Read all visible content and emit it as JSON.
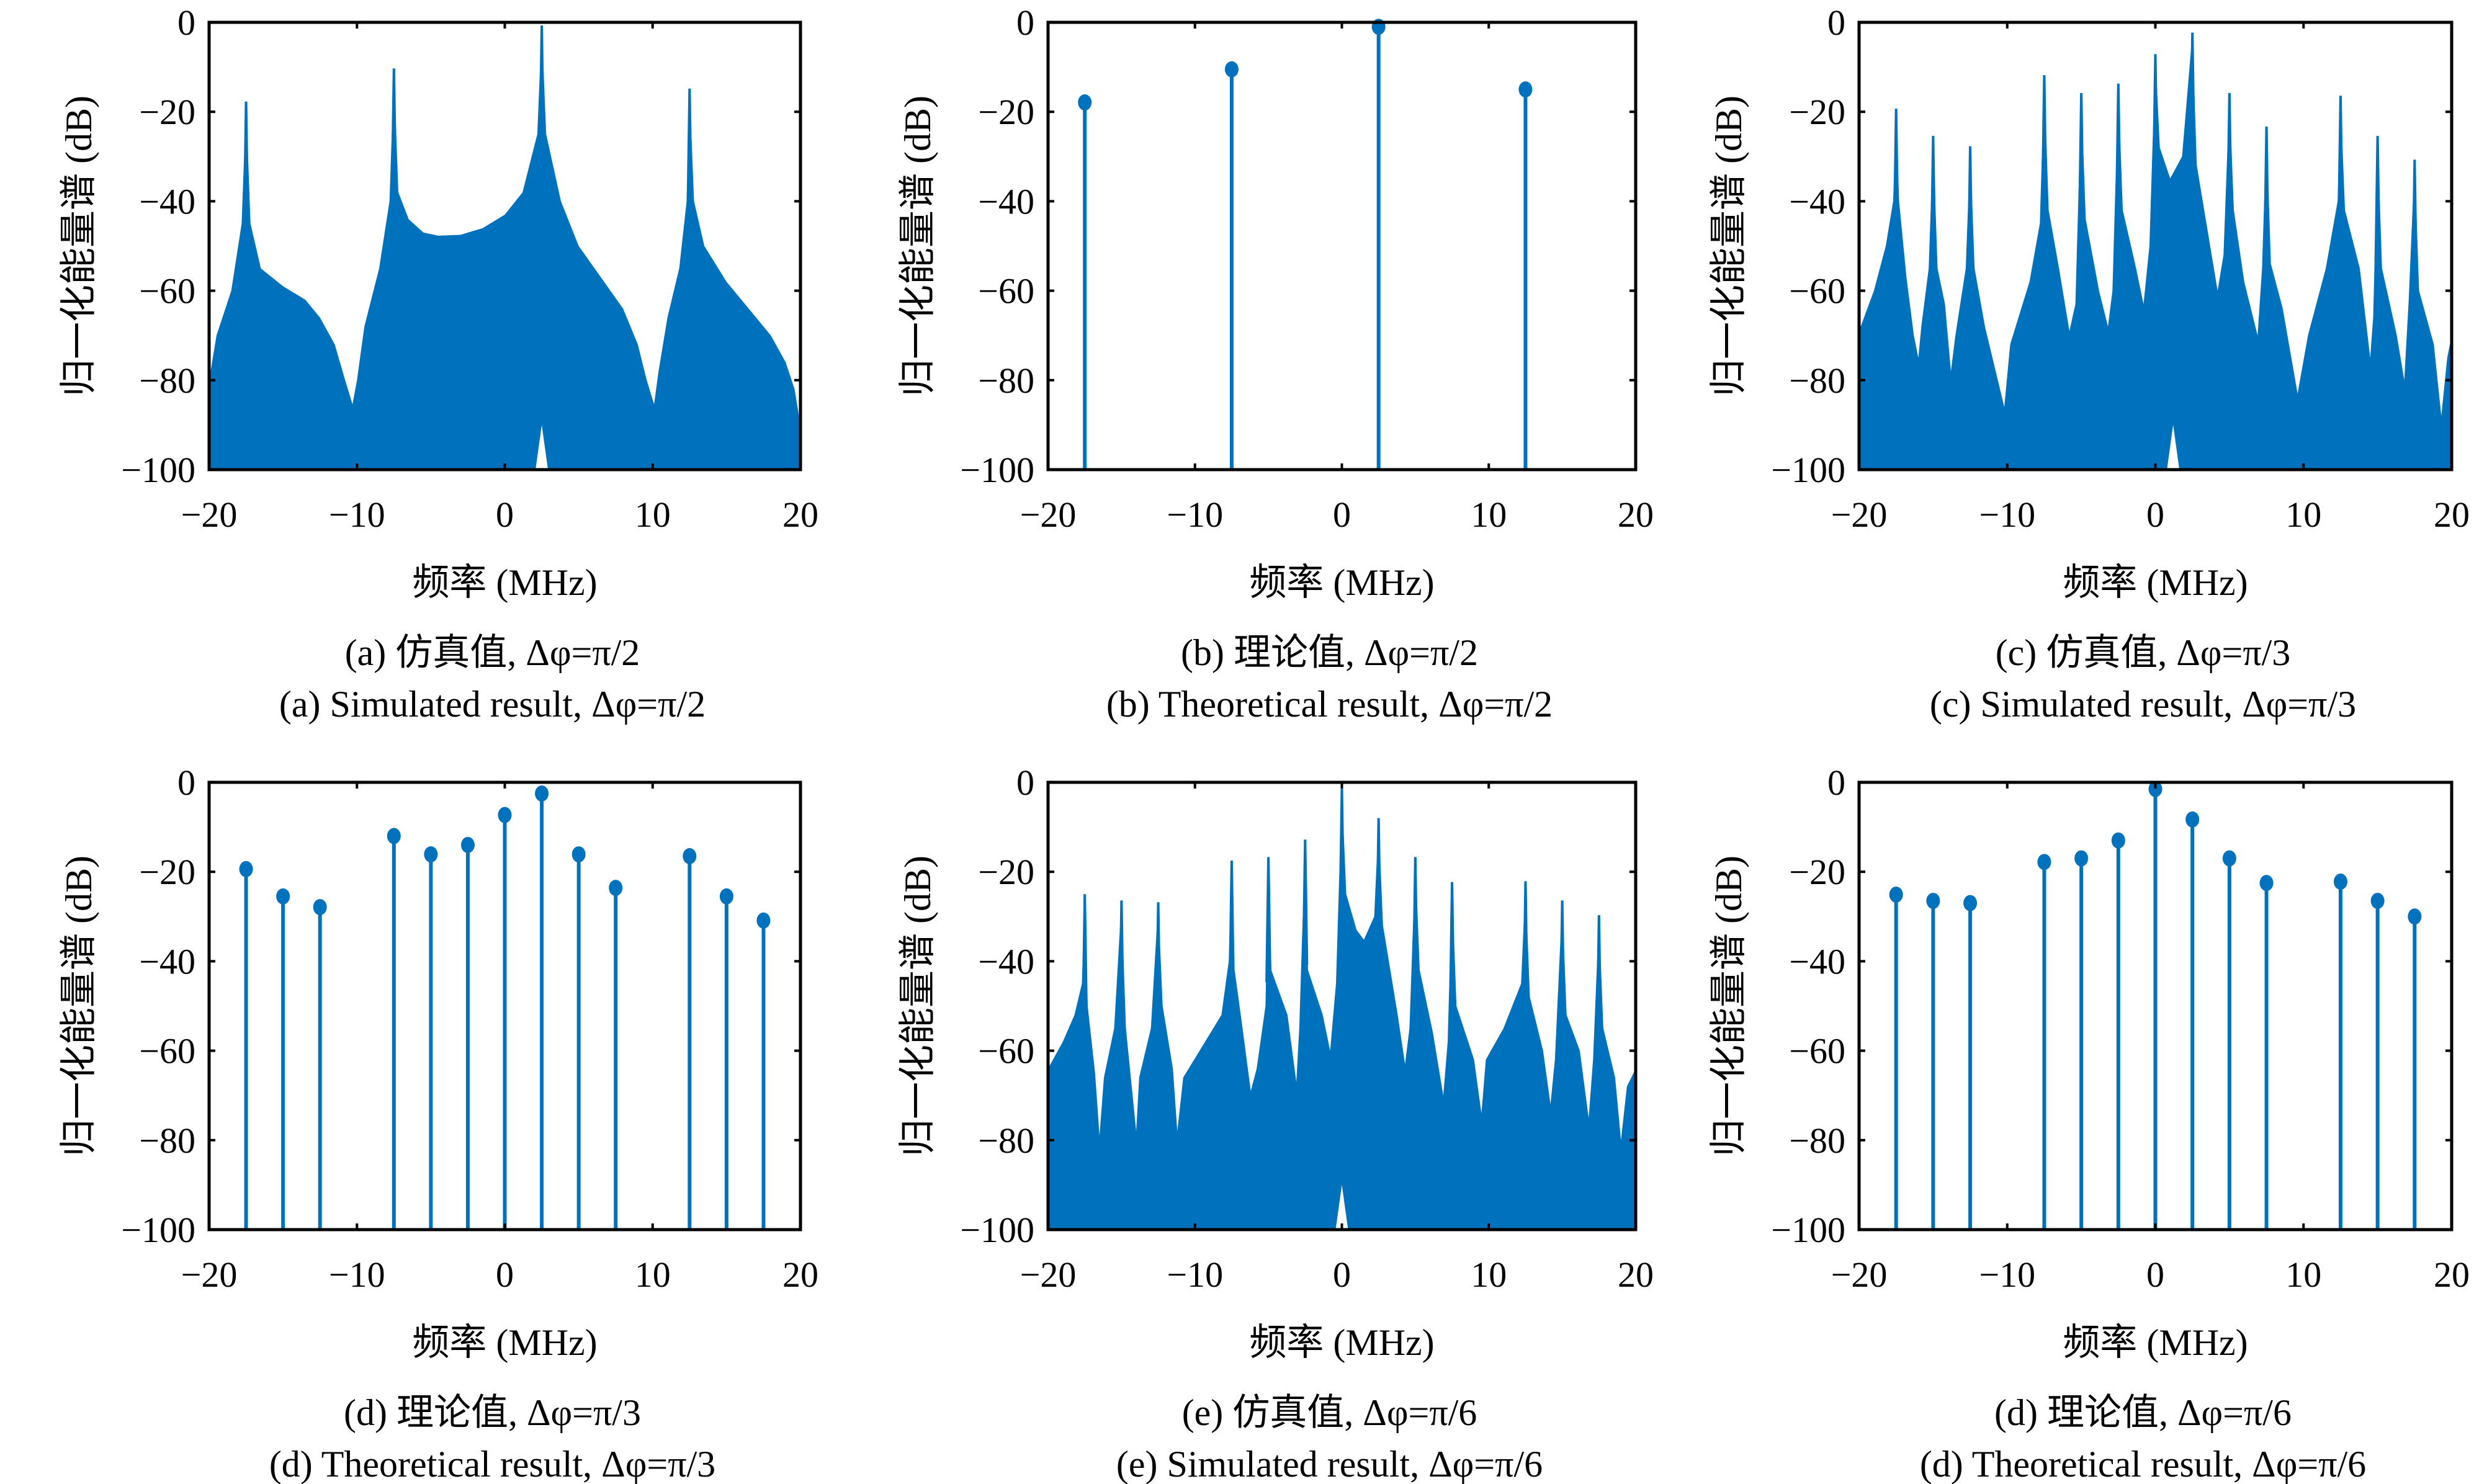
{
  "figure": {
    "fill_color": "#0072BD",
    "axis_color": "#000000"
  },
  "chart_data": [
    {
      "id": "a",
      "type": "area",
      "kind": "simulated",
      "caption_zh": "(a) 仿真值, Δφ=π/2",
      "caption_en": "(a) Simulated result, Δφ=π/2",
      "xlabel": "频率 (MHz)",
      "ylabel": "归一化能量谱 (dB)",
      "xlim": [
        -20,
        20
      ],
      "ylim": [
        -100,
        0
      ],
      "xticks": [
        -20,
        -10,
        0,
        10,
        20
      ],
      "xtick_labels": [
        "−20",
        "−10",
        "0",
        "10",
        "20"
      ],
      "yticks": [
        0,
        -20,
        -40,
        -60,
        -80,
        -100
      ],
      "ytick_labels": [
        "0",
        "−20",
        "−40",
        "−60",
        "−80",
        "−100"
      ],
      "peaks": [
        {
          "x": -17.5,
          "y": -17.7
        },
        {
          "x": -7.5,
          "y": -10.3
        },
        {
          "x": 2.5,
          "y": -0.7
        },
        {
          "x": 12.5,
          "y": -14.8
        }
      ],
      "envelope": [
        [
          -20,
          -80
        ],
        [
          -19.5,
          -70
        ],
        [
          -18.5,
          -60
        ],
        [
          -17.8,
          -45
        ],
        [
          -17.5,
          -17.7
        ],
        [
          -17.2,
          -45
        ],
        [
          -16.5,
          -55
        ],
        [
          -15,
          -59
        ],
        [
          -13.5,
          -62
        ],
        [
          -12.5,
          -66
        ],
        [
          -11.5,
          -72
        ],
        [
          -10.8,
          -80
        ],
        [
          -10.3,
          -85.4
        ],
        [
          -10,
          -80
        ],
        [
          -9.5,
          -68
        ],
        [
          -8.5,
          -55
        ],
        [
          -7.8,
          -40
        ],
        [
          -7.5,
          -10.3
        ],
        [
          -7.2,
          -38
        ],
        [
          -6.5,
          -44
        ],
        [
          -5.5,
          -47
        ],
        [
          -4.5,
          -47.7
        ],
        [
          -3,
          -47.5
        ],
        [
          -1.5,
          -46
        ],
        [
          0,
          -43
        ],
        [
          1.2,
          -38
        ],
        [
          2.2,
          -25
        ],
        [
          2.5,
          -0.7
        ],
        [
          2.8,
          -25
        ],
        [
          3.8,
          -40
        ],
        [
          5,
          -50
        ],
        [
          6.5,
          -57
        ],
        [
          8,
          -64
        ],
        [
          9,
          -72
        ],
        [
          9.6,
          -80
        ],
        [
          10.1,
          -85.4
        ],
        [
          10.4,
          -78
        ],
        [
          11,
          -66
        ],
        [
          11.8,
          -55
        ],
        [
          12.3,
          -40
        ],
        [
          12.5,
          -14.8
        ],
        [
          12.8,
          -40
        ],
        [
          13.5,
          -50
        ],
        [
          15,
          -58
        ],
        [
          16.5,
          -64
        ],
        [
          18,
          -70
        ],
        [
          19,
          -76
        ],
        [
          19.6,
          -82
        ],
        [
          20,
          -90
        ]
      ],
      "notch": {
        "x": 2.5,
        "y": -90
      }
    },
    {
      "id": "b",
      "type": "stem",
      "kind": "theoretical",
      "caption_zh": "(b) 理论值, Δφ=π/2",
      "caption_en": "(b) Theoretical result, Δφ=π/2",
      "xlabel": "频率 (MHz)",
      "ylabel": "归一化能量谱 (dB)",
      "xlim": [
        -20,
        20
      ],
      "ylim": [
        -100,
        0
      ],
      "xticks": [
        -20,
        -10,
        0,
        10,
        20
      ],
      "xtick_labels": [
        "−20",
        "−10",
        "0",
        "10",
        "20"
      ],
      "yticks": [
        0,
        -20,
        -40,
        -60,
        -80,
        -100
      ],
      "ytick_labels": [
        "0",
        "−20",
        "−40",
        "−60",
        "−80",
        "−100"
      ],
      "x": [
        -17.5,
        -7.5,
        2.5,
        12.5
      ],
      "values": [
        -17.9,
        -10.5,
        -1.0,
        -15.0
      ]
    },
    {
      "id": "c",
      "type": "area",
      "kind": "simulated",
      "caption_zh": "(c) 仿真值, Δφ=π/3",
      "caption_en": "(c) Simulated result, Δφ=π/3",
      "xlabel": "频率 (MHz)",
      "ylabel": "归一化能量谱 (dB)",
      "xlim": [
        -20,
        20
      ],
      "ylim": [
        -100,
        0
      ],
      "xticks": [
        -20,
        -10,
        0,
        10,
        20
      ],
      "xtick_labels": [
        "−20",
        "−10",
        "0",
        "10",
        "20"
      ],
      "yticks": [
        0,
        -20,
        -40,
        -60,
        -80,
        -100
      ],
      "ytick_labels": [
        "0",
        "−20",
        "−40",
        "−60",
        "−80",
        "−100"
      ],
      "peaks": [
        {
          "x": -17.5,
          "y": -19.3
        },
        {
          "x": -15.0,
          "y": -25.4
        },
        {
          "x": -12.5,
          "y": -27.7
        },
        {
          "x": -7.5,
          "y": -11.8
        },
        {
          "x": -5.0,
          "y": -15.8
        },
        {
          "x": -2.5,
          "y": -13.7
        },
        {
          "x": 0.0,
          "y": -7.1
        },
        {
          "x": 2.5,
          "y": -2.3
        },
        {
          "x": 5.0,
          "y": -15.8
        },
        {
          "x": 7.5,
          "y": -23.3
        },
        {
          "x": 12.5,
          "y": -16.4
        },
        {
          "x": 15.0,
          "y": -25.4
        },
        {
          "x": 17.5,
          "y": -30.7
        }
      ],
      "envelope": [
        [
          -20,
          -69
        ],
        [
          -19,
          -60
        ],
        [
          -18.2,
          -50
        ],
        [
          -17.7,
          -40
        ],
        [
          -17.5,
          -19.3
        ],
        [
          -17.3,
          -40
        ],
        [
          -16.8,
          -57
        ],
        [
          -16.3,
          -70
        ],
        [
          -16,
          -75
        ],
        [
          -15.8,
          -68
        ],
        [
          -15.3,
          -55
        ],
        [
          -15.0,
          -25.4
        ],
        [
          -14.7,
          -55
        ],
        [
          -14.2,
          -63
        ],
        [
          -13.8,
          -78
        ],
        [
          -13.5,
          -70
        ],
        [
          -12.8,
          -55
        ],
        [
          -12.5,
          -27.7
        ],
        [
          -12.2,
          -55
        ],
        [
          -11.5,
          -68
        ],
        [
          -10.2,
          -86
        ],
        [
          -9.8,
          -72
        ],
        [
          -8.5,
          -58
        ],
        [
          -7.8,
          -45
        ],
        [
          -7.5,
          -11.8
        ],
        [
          -7.2,
          -42
        ],
        [
          -6.5,
          -55
        ],
        [
          -5.8,
          -69
        ],
        [
          -5.4,
          -63
        ],
        [
          -5.0,
          -15.8
        ],
        [
          -4.7,
          -44
        ],
        [
          -3.8,
          -60
        ],
        [
          -3.2,
          -68
        ],
        [
          -2.9,
          -60
        ],
        [
          -2.5,
          -13.7
        ],
        [
          -2.2,
          -42
        ],
        [
          -1.3,
          -55
        ],
        [
          -0.8,
          -63
        ],
        [
          -0.4,
          -50
        ],
        [
          0.0,
          -7.1
        ],
        [
          0.3,
          -28
        ],
        [
          1.0,
          -34.9
        ],
        [
          1.8,
          -30
        ],
        [
          2.5,
          -2.3
        ],
        [
          2.8,
          -32
        ],
        [
          3.7,
          -50
        ],
        [
          4.2,
          -60
        ],
        [
          4.6,
          -52
        ],
        [
          5.0,
          -15.8
        ],
        [
          5.3,
          -42
        ],
        [
          6.0,
          -58
        ],
        [
          6.9,
          -70
        ],
        [
          7.2,
          -55
        ],
        [
          7.5,
          -23.3
        ],
        [
          7.8,
          -54
        ],
        [
          8.6,
          -64
        ],
        [
          9.6,
          -83
        ],
        [
          10.3,
          -70
        ],
        [
          11.5,
          -55
        ],
        [
          12.3,
          -40
        ],
        [
          12.5,
          -16.4
        ],
        [
          12.8,
          -42
        ],
        [
          13.8,
          -55
        ],
        [
          14.5,
          -75
        ],
        [
          14.7,
          -66
        ],
        [
          15.0,
          -25.4
        ],
        [
          15.3,
          -55
        ],
        [
          16.3,
          -70
        ],
        [
          16.8,
          -80
        ],
        [
          17.1,
          -62
        ],
        [
          17.5,
          -30.7
        ],
        [
          17.8,
          -60
        ],
        [
          18.8,
          -72
        ],
        [
          19.3,
          -88
        ],
        [
          19.7,
          -75
        ],
        [
          20,
          -70
        ]
      ],
      "notch": {
        "x": 1.2,
        "y": -90
      }
    },
    {
      "id": "d",
      "type": "stem",
      "kind": "theoretical",
      "caption_zh": "(d) 理论值, Δφ=π/3",
      "caption_en": "(d) Theoretical result, Δφ=π/3",
      "xlabel": "频率 (MHz)",
      "ylabel": "归一化能量谱 (dB)",
      "xlim": [
        -20,
        20
      ],
      "ylim": [
        -100,
        0
      ],
      "xticks": [
        -20,
        -10,
        0,
        10,
        20
      ],
      "xtick_labels": [
        "−20",
        "−10",
        "0",
        "10",
        "20"
      ],
      "yticks": [
        0,
        -20,
        -40,
        -60,
        -80,
        -100
      ],
      "ytick_labels": [
        "0",
        "−20",
        "−40",
        "−60",
        "−80",
        "−100"
      ],
      "x": [
        -17.5,
        -15.0,
        -12.5,
        -7.5,
        -5.0,
        -2.5,
        0.0,
        2.5,
        5.0,
        7.5,
        12.5,
        15.0,
        17.5
      ],
      "values": [
        -19.4,
        -25.5,
        -27.9,
        -12.0,
        -16.1,
        -14.0,
        -7.3,
        -2.5,
        -16.1,
        -23.6,
        -16.5,
        -25.5,
        -30.9
      ]
    },
    {
      "id": "e",
      "type": "area",
      "kind": "simulated",
      "caption_zh": "(e) 仿真值, Δφ=π/6",
      "caption_en": "(e) Simulated result, Δφ=π/6",
      "xlabel": "频率 (MHz)",
      "ylabel": "归一化能量谱 (dB)",
      "xlim": [
        -20,
        20
      ],
      "ylim": [
        -100,
        0
      ],
      "xticks": [
        -20,
        -10,
        0,
        10,
        20
      ],
      "xtick_labels": [
        "−20",
        "−10",
        "0",
        "10",
        "20"
      ],
      "yticks": [
        0,
        -20,
        -40,
        -60,
        -80,
        -100
      ],
      "ytick_labels": [
        "0",
        "−20",
        "−40",
        "−60",
        "−80",
        "−100"
      ],
      "peaks": [
        {
          "x": -17.5,
          "y": -25.0
        },
        {
          "x": -15.0,
          "y": -26.4
        },
        {
          "x": -12.5,
          "y": -26.8
        },
        {
          "x": -7.5,
          "y": -17.5
        },
        {
          "x": -5.0,
          "y": -16.7
        },
        {
          "x": -2.5,
          "y": -12.8
        },
        {
          "x": 0.0,
          "y": -1.4
        },
        {
          "x": 2.5,
          "y": -8.0
        },
        {
          "x": 5.0,
          "y": -16.7
        },
        {
          "x": 7.5,
          "y": -22.3
        },
        {
          "x": 12.5,
          "y": -22.1
        },
        {
          "x": 15.0,
          "y": -26.4
        },
        {
          "x": 17.5,
          "y": -29.7
        }
      ],
      "envelope": [
        [
          -20,
          -64
        ],
        [
          -19,
          -58
        ],
        [
          -18.2,
          -52
        ],
        [
          -17.7,
          -45
        ],
        [
          -17.5,
          -25.0
        ],
        [
          -17.3,
          -50
        ],
        [
          -16.8,
          -65
        ],
        [
          -16.5,
          -79
        ],
        [
          -16.2,
          -66
        ],
        [
          -15.5,
          -55
        ],
        [
          -15.0,
          -26.4
        ],
        [
          -14.7,
          -55
        ],
        [
          -14.0,
          -78
        ],
        [
          -13.8,
          -66
        ],
        [
          -13.0,
          -55
        ],
        [
          -12.5,
          -26.8
        ],
        [
          -12.2,
          -50
        ],
        [
          -11.5,
          -64
        ],
        [
          -11.2,
          -78
        ],
        [
          -10.8,
          -66
        ],
        [
          -9.5,
          -59
        ],
        [
          -8.2,
          -52
        ],
        [
          -7.7,
          -40
        ],
        [
          -7.5,
          -17.5
        ],
        [
          -7.3,
          -42
        ],
        [
          -6.8,
          -54
        ],
        [
          -6.2,
          -69
        ],
        [
          -5.8,
          -64
        ],
        [
          -5.2,
          -50
        ],
        [
          -5.0,
          -16.7
        ],
        [
          -4.8,
          -42
        ],
        [
          -3.7,
          -52
        ],
        [
          -3.1,
          -67
        ],
        [
          -2.9,
          -55
        ],
        [
          -2.5,
          -12.8
        ],
        [
          -2.3,
          -42
        ],
        [
          -1.3,
          -52
        ],
        [
          -0.8,
          -60
        ],
        [
          -0.4,
          -45
        ],
        [
          0.0,
          -1.4
        ],
        [
          0.3,
          -25
        ],
        [
          1.0,
          -33
        ],
        [
          1.5,
          -35.2
        ],
        [
          2.2,
          -30
        ],
        [
          2.5,
          -8.0
        ],
        [
          2.8,
          -32
        ],
        [
          3.8,
          -52
        ],
        [
          4.3,
          -63
        ],
        [
          4.6,
          -55
        ],
        [
          5.0,
          -16.7
        ],
        [
          5.3,
          -42
        ],
        [
          6.2,
          -56
        ],
        [
          6.9,
          -70
        ],
        [
          7.2,
          -58
        ],
        [
          7.5,
          -22.3
        ],
        [
          7.8,
          -50
        ],
        [
          9.0,
          -62
        ],
        [
          9.5,
          -74
        ],
        [
          9.8,
          -62
        ],
        [
          11.0,
          -55
        ],
        [
          12.2,
          -45
        ],
        [
          12.5,
          -22.1
        ],
        [
          12.8,
          -48
        ],
        [
          13.7,
          -60
        ],
        [
          14.2,
          -72
        ],
        [
          14.5,
          -62
        ],
        [
          15.0,
          -26.4
        ],
        [
          15.3,
          -52
        ],
        [
          16.2,
          -60
        ],
        [
          16.8,
          -75
        ],
        [
          17.1,
          -62
        ],
        [
          17.5,
          -29.7
        ],
        [
          17.8,
          -55
        ],
        [
          18.6,
          -66
        ],
        [
          19.0,
          -80
        ],
        [
          19.4,
          -68
        ],
        [
          20,
          -64
        ]
      ],
      "notch": {
        "x": 0.0,
        "y": -90
      }
    },
    {
      "id": "f",
      "type": "stem",
      "kind": "theoretical",
      "caption_zh": "(d) 理论值, Δφ=π/6",
      "caption_en": "(d) Theoretical result, Δφ=π/6",
      "xlabel": "频率 (MHz)",
      "ylabel": "归一化能量谱 (dB)",
      "xlim": [
        -20,
        20
      ],
      "ylim": [
        -100,
        0
      ],
      "xticks": [
        -20,
        -10,
        0,
        10,
        20
      ],
      "xtick_labels": [
        "−20",
        "−10",
        "0",
        "10",
        "20"
      ],
      "yticks": [
        0,
        -20,
        -40,
        -60,
        -80,
        -100
      ],
      "ytick_labels": [
        "0",
        "−20",
        "−40",
        "−60",
        "−80",
        "−100"
      ],
      "x": [
        -17.5,
        -15.0,
        -12.5,
        -7.5,
        -5.0,
        -2.5,
        0.0,
        2.5,
        5.0,
        7.5,
        12.5,
        15.0,
        17.5
      ],
      "values": [
        -25.1,
        -26.5,
        -27.0,
        -17.8,
        -17.0,
        -13.0,
        -1.5,
        -8.3,
        -17.0,
        -22.5,
        -22.2,
        -26.5,
        -30.0
      ]
    }
  ]
}
